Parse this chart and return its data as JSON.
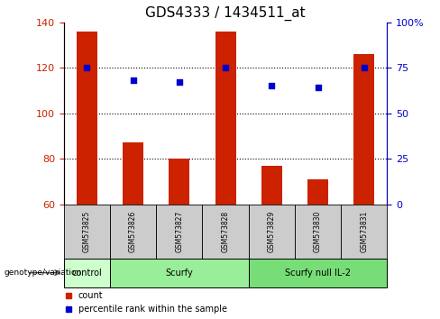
{
  "title": "GDS4333 / 1434511_at",
  "samples": [
    "GSM573825",
    "GSM573826",
    "GSM573827",
    "GSM573828",
    "GSM573829",
    "GSM573830",
    "GSM573831"
  ],
  "counts": [
    136,
    87,
    80,
    136,
    77,
    71,
    126
  ],
  "percentiles": [
    75,
    68,
    67,
    75,
    65,
    64,
    75
  ],
  "ylim_left": [
    60,
    140
  ],
  "ylim_right": [
    0,
    100
  ],
  "yticks_left": [
    60,
    80,
    100,
    120,
    140
  ],
  "yticks_right": [
    0,
    25,
    50,
    75,
    100
  ],
  "ytick_labels_right": [
    "0",
    "25",
    "50",
    "75",
    "100%"
  ],
  "bar_color": "#cc2200",
  "scatter_color": "#0000cc",
  "groups": [
    {
      "label": "control",
      "start": 0,
      "end": 0,
      "color": "#ccffcc"
    },
    {
      "label": "Scurfy",
      "start": 1,
      "end": 3,
      "color": "#99ee99"
    },
    {
      "label": "Scurfy null IL-2",
      "start": 4,
      "end": 6,
      "color": "#77dd77"
    }
  ],
  "group_row_label": "genotype/variation",
  "legend_count_label": "count",
  "legend_pct_label": "percentile rank within the sample",
  "sample_box_color": "#cccccc",
  "title_fontsize": 11,
  "tick_fontsize": 8,
  "bar_width": 0.45
}
